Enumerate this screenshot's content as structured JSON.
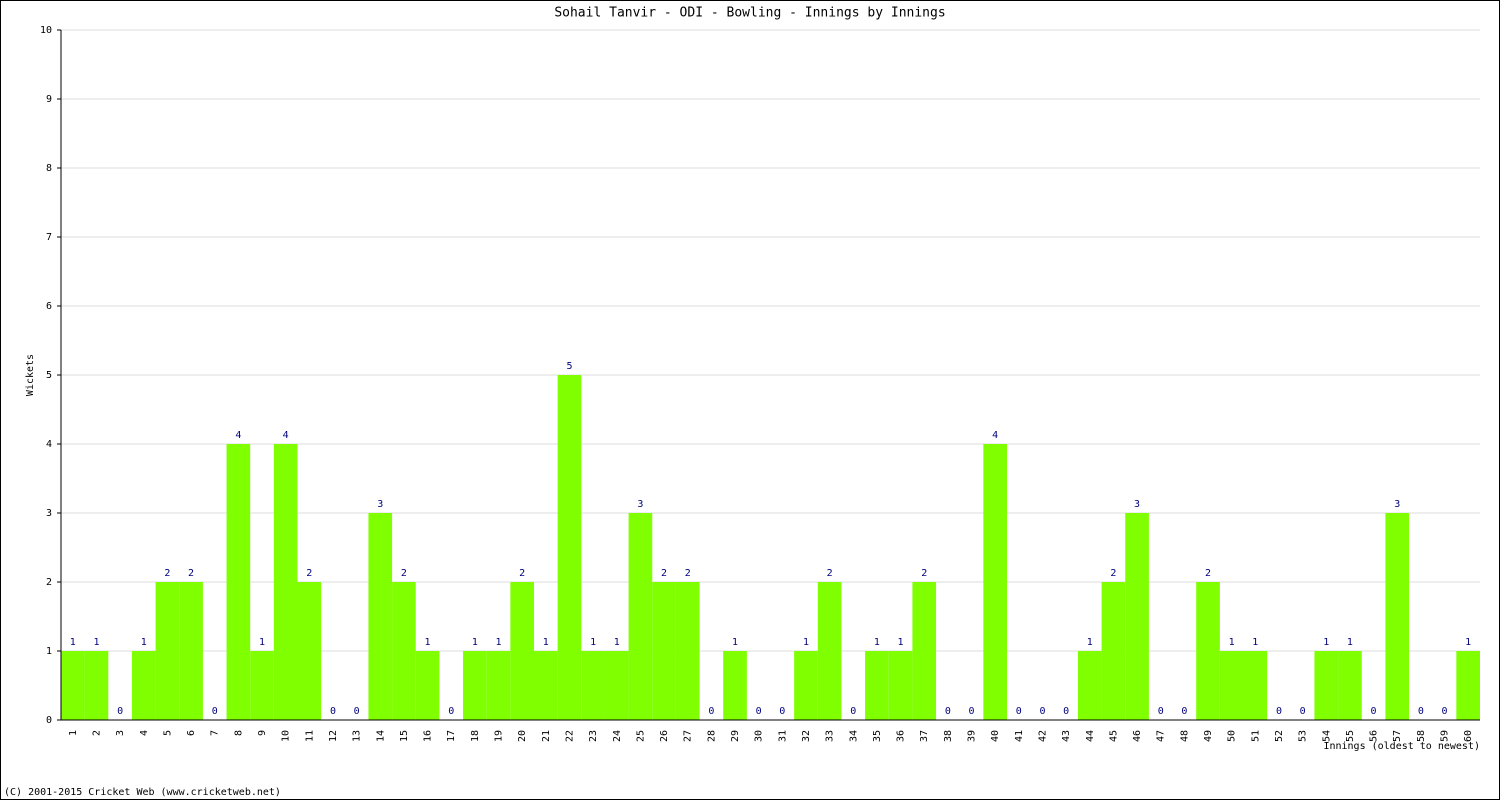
{
  "chart_data": {
    "type": "bar",
    "title": "Sohail Tanvir - ODI - Bowling - Innings by Innings",
    "ylabel": "Wickets",
    "xlabel": "Innings (oldest to newest)",
    "footer": "(C) 2001-2015 Cricket Web (www.cricketweb.net)",
    "categories": [
      "1",
      "2",
      "3",
      "4",
      "5",
      "6",
      "7",
      "8",
      "9",
      "10",
      "11",
      "12",
      "13",
      "14",
      "15",
      "16",
      "17",
      "18",
      "19",
      "20",
      "21",
      "22",
      "23",
      "24",
      "25",
      "26",
      "27",
      "28",
      "29",
      "30",
      "31",
      "32",
      "33",
      "34",
      "35",
      "36",
      "37",
      "38",
      "39",
      "40",
      "41",
      "42",
      "43",
      "44",
      "45",
      "46",
      "47",
      "48",
      "49",
      "50",
      "51",
      "52",
      "53",
      "54",
      "55",
      "56",
      "57",
      "58",
      "59",
      "60"
    ],
    "values": [
      1,
      1,
      0,
      1,
      2,
      2,
      0,
      4,
      1,
      4,
      2,
      0,
      0,
      3,
      2,
      1,
      0,
      1,
      1,
      2,
      1,
      5,
      1,
      1,
      3,
      2,
      2,
      0,
      1,
      0,
      0,
      1,
      2,
      0,
      1,
      1,
      2,
      0,
      0,
      4,
      0,
      0,
      0,
      1,
      2,
      3,
      0,
      0,
      2,
      1,
      1,
      0,
      0,
      1,
      1,
      0,
      3,
      0,
      0,
      1
    ],
    "color": "#7fff00",
    "ylim": [
      0,
      10
    ],
    "yticks": [
      0,
      1,
      2,
      3,
      4,
      5,
      6,
      7,
      8,
      9,
      10
    ],
    "grid": true
  }
}
